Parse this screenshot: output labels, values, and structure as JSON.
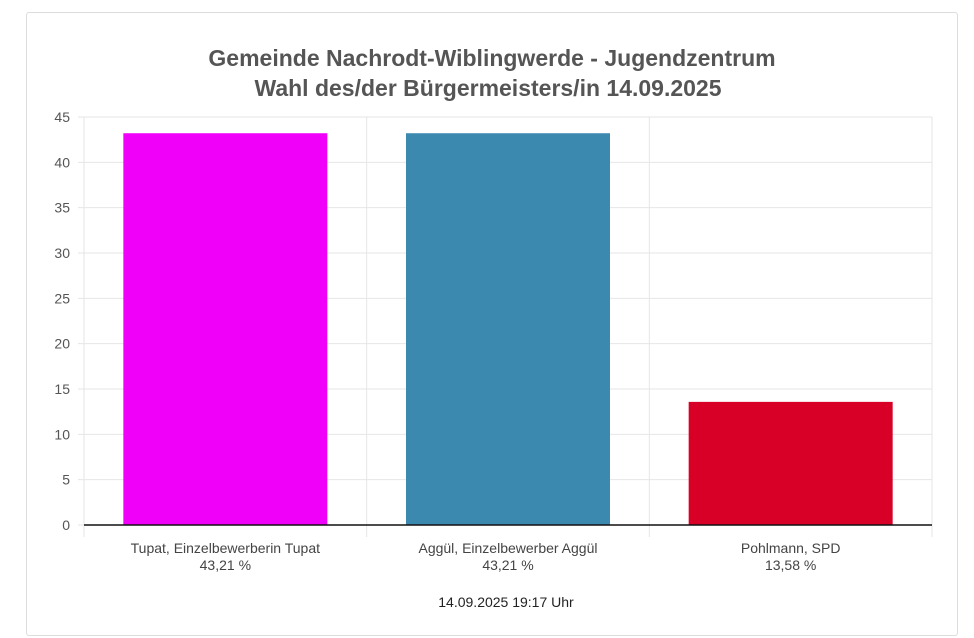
{
  "chart_data": {
    "type": "bar",
    "title": [
      "Gemeinde Nachrodt-Wiblingwerde - Jugendzentrum",
      "Wahl des/der Bürgermeisters/in 14.09.2025"
    ],
    "categories": [
      "Tupat, Einzelbewerberin Tupat",
      "Aggül, Einzelbewerber Aggül",
      "Pohlmann, SPD"
    ],
    "category_sublabels": [
      "43,21 %",
      "43,21 %",
      "13,58 %"
    ],
    "values": [
      43.21,
      43.21,
      13.58
    ],
    "colors": [
      "#f000f8",
      "#3c89b0",
      "#d80026"
    ],
    "ylim": [
      0,
      45
    ],
    "yticks": [
      "0",
      "5",
      "10",
      "15",
      "20",
      "25",
      "30",
      "35",
      "40",
      "45"
    ],
    "grid": true,
    "legend": "none",
    "xlabel": "",
    "ylabel": ""
  },
  "footer": {
    "timestamp": "14.09.2025 19:17 Uhr"
  }
}
